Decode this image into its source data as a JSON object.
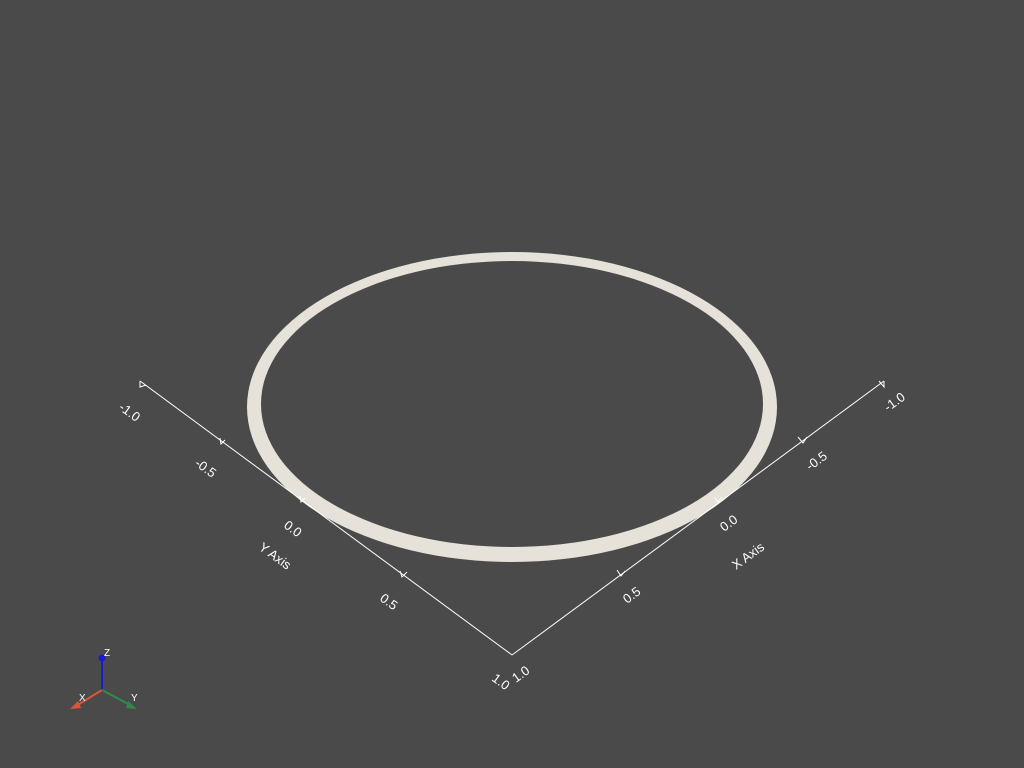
{
  "scene": {
    "background": "#4a4a4a",
    "ring_color": "#e6e1d9",
    "axis_color": "#ffffff"
  },
  "axes": {
    "y_axis": {
      "title": "Y Axis",
      "ticks": [
        "-1.0",
        "-0.5",
        "0.0",
        "0.5",
        "1.0"
      ]
    },
    "x_axis": {
      "title": "X Axis",
      "ticks": [
        "-1.0",
        "-0.5",
        "0.0",
        "0.5",
        "1.0"
      ]
    }
  },
  "orientation_widget": {
    "x_label": "X",
    "y_label": "Y",
    "z_label": "Z",
    "x_color": "#e0533a",
    "y_color": "#2f8a4a",
    "z_color": "#1a1ad0"
  }
}
